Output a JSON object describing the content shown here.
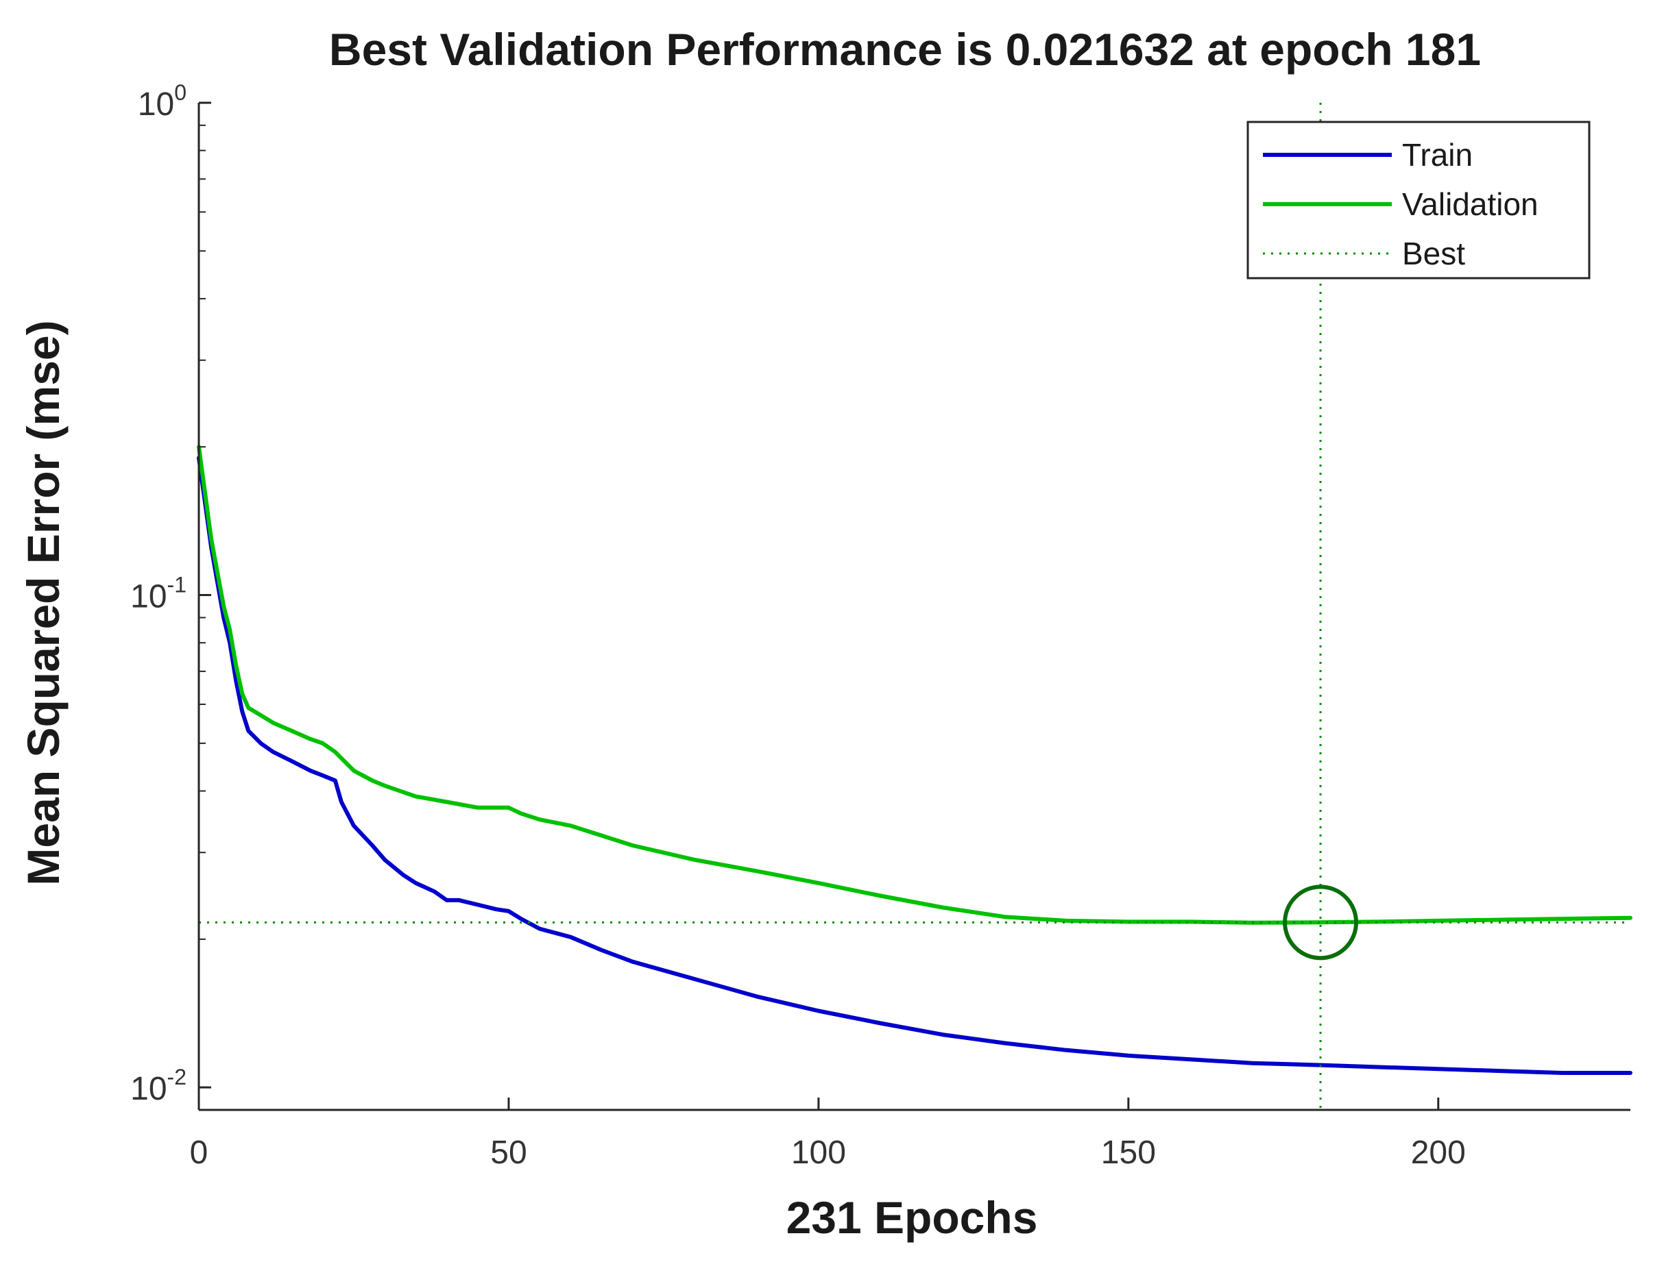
{
  "chart_data": {
    "type": "line",
    "title": "Best Validation Performance is 0.021632 at epoch 181",
    "xlabel": "231 Epochs",
    "ylabel": "Mean Squared Error  (mse)",
    "xlim": [
      0,
      231
    ],
    "ylim": [
      0.009,
      1.0
    ],
    "yscale": "log",
    "xticks": [
      0,
      50,
      100,
      150,
      200
    ],
    "xtick_labels": [
      "0",
      "50",
      "100",
      "150",
      "200"
    ],
    "yticks": [
      {
        "value": 1.0,
        "base": "10",
        "exp": "0"
      },
      {
        "value": 0.1,
        "base": "10",
        "exp": "-1"
      },
      {
        "value": 0.01,
        "base": "10",
        "exp": "-2"
      }
    ],
    "legend_position": "top-right",
    "best": {
      "epoch": 181,
      "value": 0.021632,
      "label": "Best"
    },
    "series": [
      {
        "name": "Train",
        "color": "#0000cc",
        "x": [
          0,
          2,
          4,
          5,
          6,
          7,
          8,
          10,
          12,
          15,
          18,
          20,
          22,
          23,
          25,
          28,
          30,
          33,
          35,
          38,
          40,
          42,
          45,
          48,
          50,
          52,
          55,
          60,
          65,
          70,
          80,
          90,
          100,
          110,
          120,
          130,
          140,
          150,
          160,
          170,
          181,
          190,
          200,
          210,
          220,
          231
        ],
        "values": [
          0.19,
          0.125,
          0.09,
          0.08,
          0.067,
          0.058,
          0.053,
          0.05,
          0.048,
          0.046,
          0.044,
          0.043,
          0.042,
          0.038,
          0.034,
          0.031,
          0.029,
          0.027,
          0.026,
          0.025,
          0.024,
          0.024,
          0.0235,
          0.023,
          0.0228,
          0.022,
          0.021,
          0.0202,
          0.019,
          0.018,
          0.0166,
          0.0153,
          0.0143,
          0.0135,
          0.0128,
          0.0123,
          0.0119,
          0.0116,
          0.0114,
          0.0112,
          0.0111,
          0.011,
          0.0109,
          0.0108,
          0.0107,
          0.0107
        ]
      },
      {
        "name": "Validation",
        "color": "#00c000",
        "x": [
          0,
          2,
          4,
          5,
          6,
          7,
          8,
          10,
          12,
          15,
          18,
          20,
          22,
          25,
          28,
          30,
          35,
          40,
          45,
          50,
          52,
          55,
          60,
          70,
          80,
          90,
          100,
          110,
          120,
          130,
          140,
          150,
          160,
          170,
          181,
          190,
          200,
          210,
          220,
          231
        ],
        "values": [
          0.2,
          0.13,
          0.095,
          0.085,
          0.072,
          0.063,
          0.059,
          0.057,
          0.055,
          0.053,
          0.051,
          0.05,
          0.048,
          0.044,
          0.042,
          0.041,
          0.039,
          0.038,
          0.037,
          0.037,
          0.036,
          0.035,
          0.034,
          0.031,
          0.029,
          0.0275,
          0.026,
          0.0245,
          0.0232,
          0.0222,
          0.0218,
          0.0217,
          0.0217,
          0.0216,
          0.021632,
          0.0217,
          0.0218,
          0.0219,
          0.022,
          0.0221
        ]
      }
    ]
  }
}
